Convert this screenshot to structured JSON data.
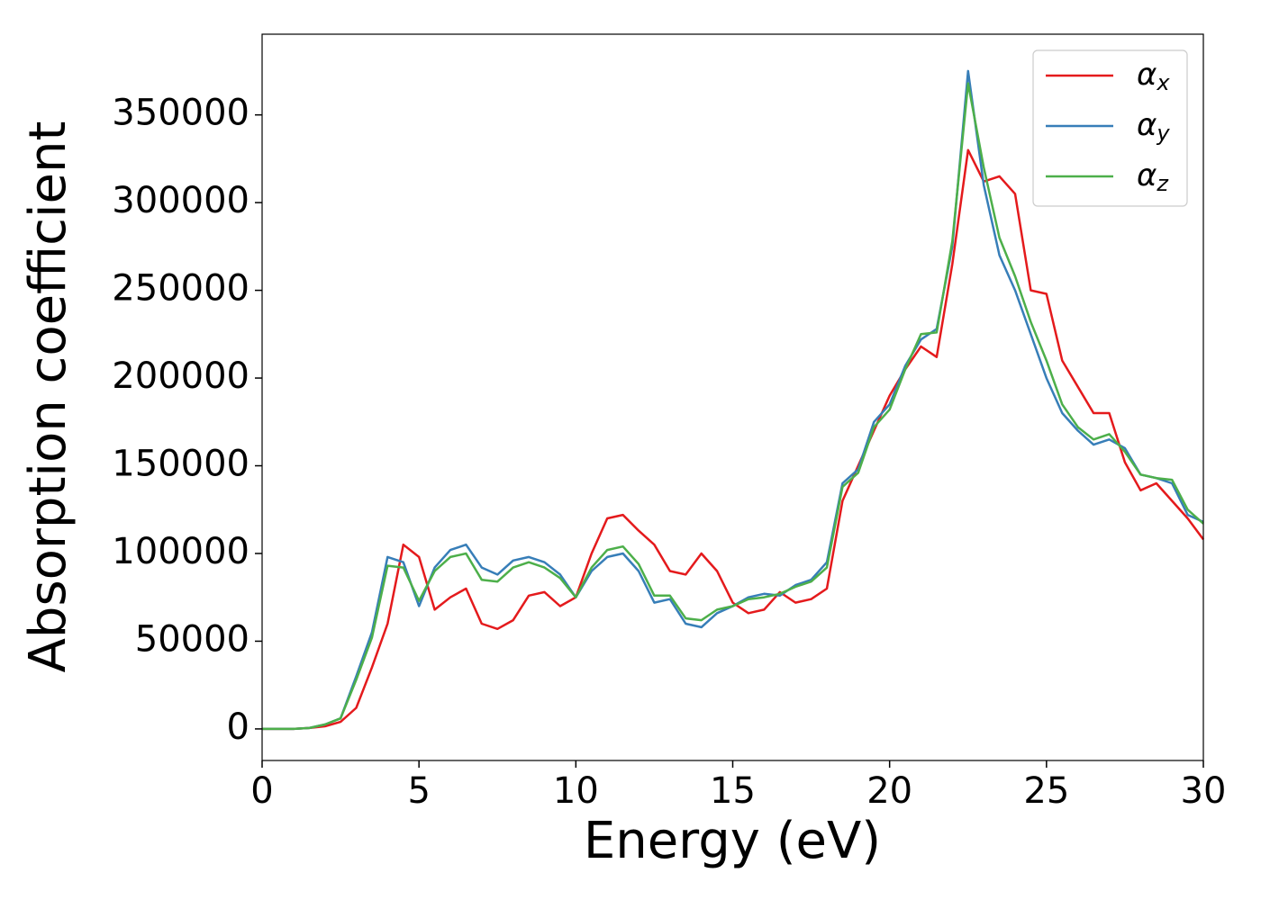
{
  "chart_data": {
    "type": "line",
    "xlabel": "Energy (eV)",
    "ylabel": "Absorption coefficient",
    "x": [
      0,
      0.5,
      1,
      1.5,
      2,
      2.5,
      3,
      3.5,
      4,
      4.5,
      5,
      5.5,
      6,
      6.5,
      7,
      7.5,
      8,
      8.5,
      9,
      9.5,
      10,
      10.5,
      11,
      11.5,
      12,
      12.5,
      13,
      13.5,
      14,
      14.5,
      15,
      15.5,
      16,
      16.5,
      17,
      17.5,
      18,
      18.5,
      19,
      19.5,
      20,
      20.5,
      21,
      21.5,
      22,
      22.5,
      23,
      23.5,
      24,
      24.5,
      25,
      25.5,
      26,
      26.5,
      27,
      27.5,
      28,
      28.5,
      29,
      29.5,
      30
    ],
    "series": [
      {
        "name": "αx",
        "color": "#e41a1c",
        "values": [
          0,
          0,
          0,
          500,
          1500,
          4000,
          12000,
          35000,
          60000,
          105000,
          98000,
          68000,
          75000,
          80000,
          60000,
          57000,
          62000,
          76000,
          78000,
          70000,
          75000,
          100000,
          120000,
          122000,
          113000,
          105000,
          90000,
          88000,
          100000,
          90000,
          72000,
          66000,
          68000,
          78000,
          72000,
          74000,
          80000,
          130000,
          150000,
          170000,
          190000,
          205000,
          218000,
          212000,
          265000,
          330000,
          312000,
          315000,
          305000,
          250000,
          248000,
          210000,
          195000,
          180000,
          180000,
          152000,
          136000,
          140000,
          130000,
          120000,
          108000
        ]
      },
      {
        "name": "αy",
        "color": "#377eb8",
        "values": [
          0,
          0,
          0,
          500,
          2500,
          6000,
          30000,
          55000,
          98000,
          95000,
          70000,
          92000,
          102000,
          105000,
          92000,
          88000,
          96000,
          98000,
          95000,
          88000,
          75000,
          90000,
          98000,
          100000,
          90000,
          72000,
          74000,
          60000,
          58000,
          66000,
          70000,
          75000,
          77000,
          76000,
          82000,
          85000,
          95000,
          140000,
          148000,
          175000,
          185000,
          207000,
          222000,
          228000,
          275000,
          375000,
          310000,
          270000,
          250000,
          225000,
          200000,
          180000,
          170000,
          162000,
          165000,
          160000,
          145000,
          143000,
          140000,
          122000,
          118000
        ]
      },
      {
        "name": "αz",
        "color": "#4daf4a",
        "values": [
          0,
          0,
          0,
          500,
          2500,
          6000,
          28000,
          52000,
          93000,
          92000,
          73000,
          90000,
          98000,
          100000,
          85000,
          84000,
          92000,
          95000,
          92000,
          86000,
          75000,
          92000,
          102000,
          104000,
          94000,
          76000,
          76000,
          63000,
          62000,
          68000,
          70000,
          74000,
          75000,
          77000,
          81000,
          84000,
          92000,
          138000,
          146000,
          172000,
          182000,
          205000,
          225000,
          226000,
          278000,
          368000,
          320000,
          280000,
          258000,
          232000,
          210000,
          185000,
          172000,
          165000,
          168000,
          158000,
          145000,
          143000,
          142000,
          125000,
          117000
        ]
      }
    ],
    "xlim": [
      0,
      30
    ],
    "xticks": [
      0,
      5,
      10,
      15,
      20,
      25,
      30
    ],
    "ylim": [
      -18000,
      396000
    ],
    "yticks": [
      0,
      50000,
      100000,
      150000,
      200000,
      250000,
      300000,
      350000
    ],
    "grid": false,
    "legend": "upper right"
  }
}
